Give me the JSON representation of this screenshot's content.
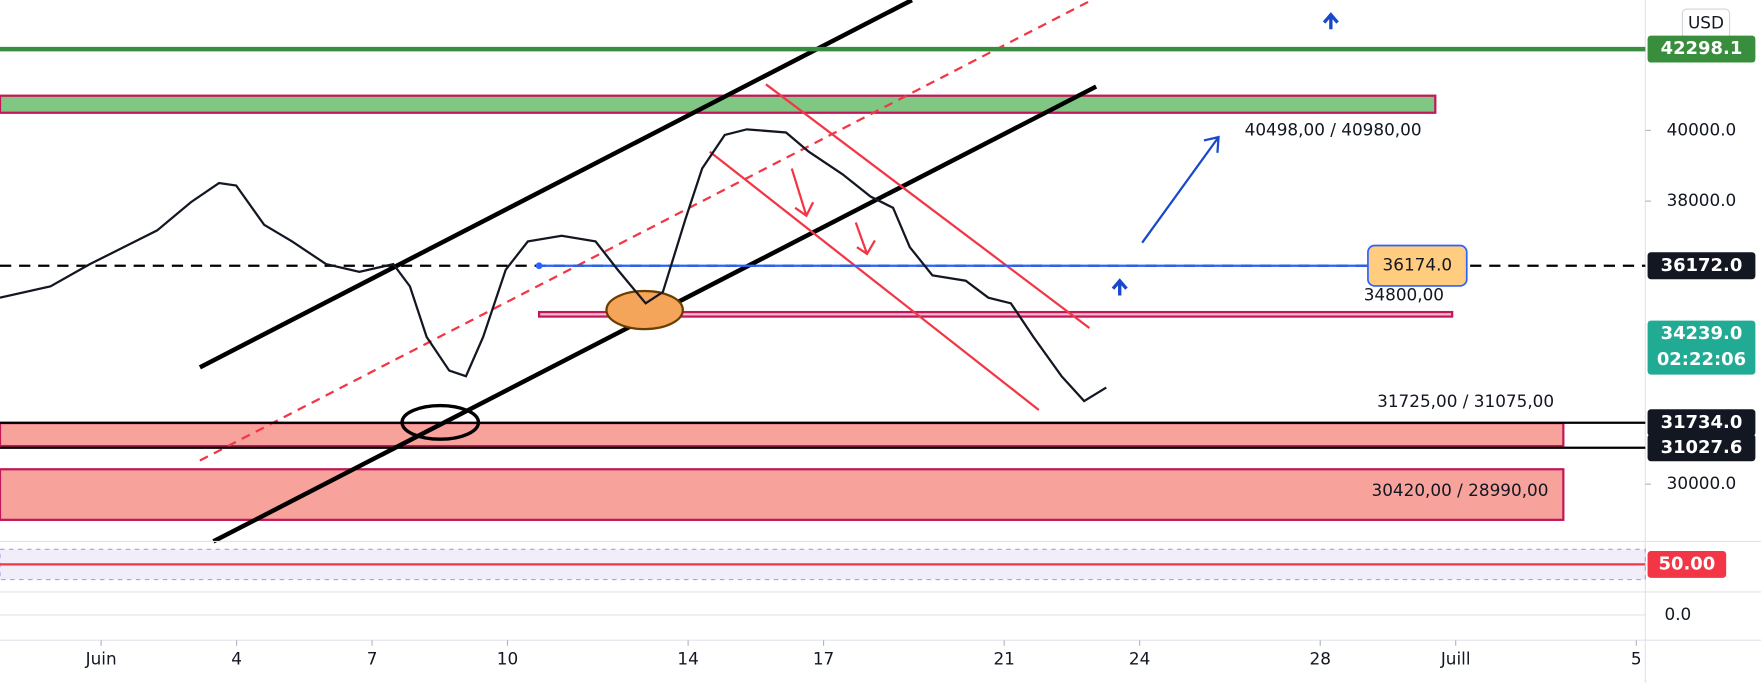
{
  "chart_data": {
    "type": "line",
    "currency": "USD",
    "color": "#131722",
    "x": [
      -1.24,
      -0.12,
      0.75,
      1.5,
      2.24,
      2.99,
      3.61,
      3.99,
      4.61,
      5.23,
      5.98,
      6.72,
      7.47,
      7.84,
      8.21,
      8.71,
      9.08,
      9.46,
      9.96,
      10.45,
      11.2,
      11.95,
      12.44,
      13.06,
      13.44,
      13.94,
      14.31,
      14.81,
      15.3,
      16.17,
      16.67,
      17.42,
      18.04,
      18.54,
      18.91,
      19.41,
      20.15,
      20.65,
      21.15,
      21.65,
      22.27,
      22.77,
      23.26
    ],
    "values": [
      35270,
      35590,
      36220,
      36700,
      37170,
      37970,
      38510,
      38440,
      37330,
      36860,
      36220,
      36000,
      36220,
      35590,
      34160,
      33210,
      33050,
      34160,
      36060,
      36860,
      37020,
      36860,
      36060,
      35110,
      35430,
      37490,
      38920,
      39870,
      40030,
      39940,
      39400,
      38760,
      38130,
      37810,
      36700,
      35900,
      35750,
      35270,
      35110,
      34160,
      33050,
      32350,
      32730
    ],
    "xlim": [
      -1.24,
      35.2
    ],
    "xticks": [
      {
        "value": 1,
        "label": "Juin"
      },
      4,
      7,
      10,
      14,
      17,
      21,
      24,
      28,
      {
        "value": 31,
        "label": "Juill"
      },
      5
    ],
    "ylim": [
      28444,
      43683
    ],
    "yticks": [
      {
        "value": 30000,
        "label": "30000.0"
      },
      {
        "value": 38000,
        "label": "38000.0"
      },
      {
        "value": 40000,
        "label": "40000.0"
      }
    ],
    "levels": [
      {
        "value": 42298.1,
        "label": "42298.1",
        "color": "#388e3c"
      },
      {
        "value": 36172,
        "label": "36172.0",
        "color": "#131722"
      },
      {
        "value": 34239,
        "label": "34239.0",
        "countdown": "02:22:06",
        "color": "#22ab94"
      },
      {
        "value": 31734,
        "label": "31734.0",
        "color": "#131722"
      },
      {
        "value": 31027.6,
        "label": "31027.6",
        "color": "#131722"
      }
    ],
    "alert": {
      "value": 36174,
      "label": "36174.0",
      "color": "#2962ff"
    },
    "zones": [
      {
        "low": 40498,
        "high": 40980,
        "label": "40498,00 / 40980,00",
        "color": "#81c784"
      },
      {
        "low": 34800,
        "high": 34800,
        "label": "34800,00",
        "color": "#f8bbd0"
      },
      {
        "low": 31075,
        "high": 31725,
        "label": "31725,00 / 31075,00",
        "color": "#f7a29b"
      },
      {
        "low": 28990,
        "high": 30420,
        "label": "30420,00 / 28990,00",
        "color": "#f7a29b"
      }
    ],
    "rsi": {
      "ylim": [
        23,
        77
      ],
      "level": {
        "value": 50,
        "label": "50.00"
      }
    },
    "macd": {
      "ylim": [
        -1000,
        1000
      ],
      "level": {
        "value": 0,
        "label": "0.0"
      }
    }
  }
}
